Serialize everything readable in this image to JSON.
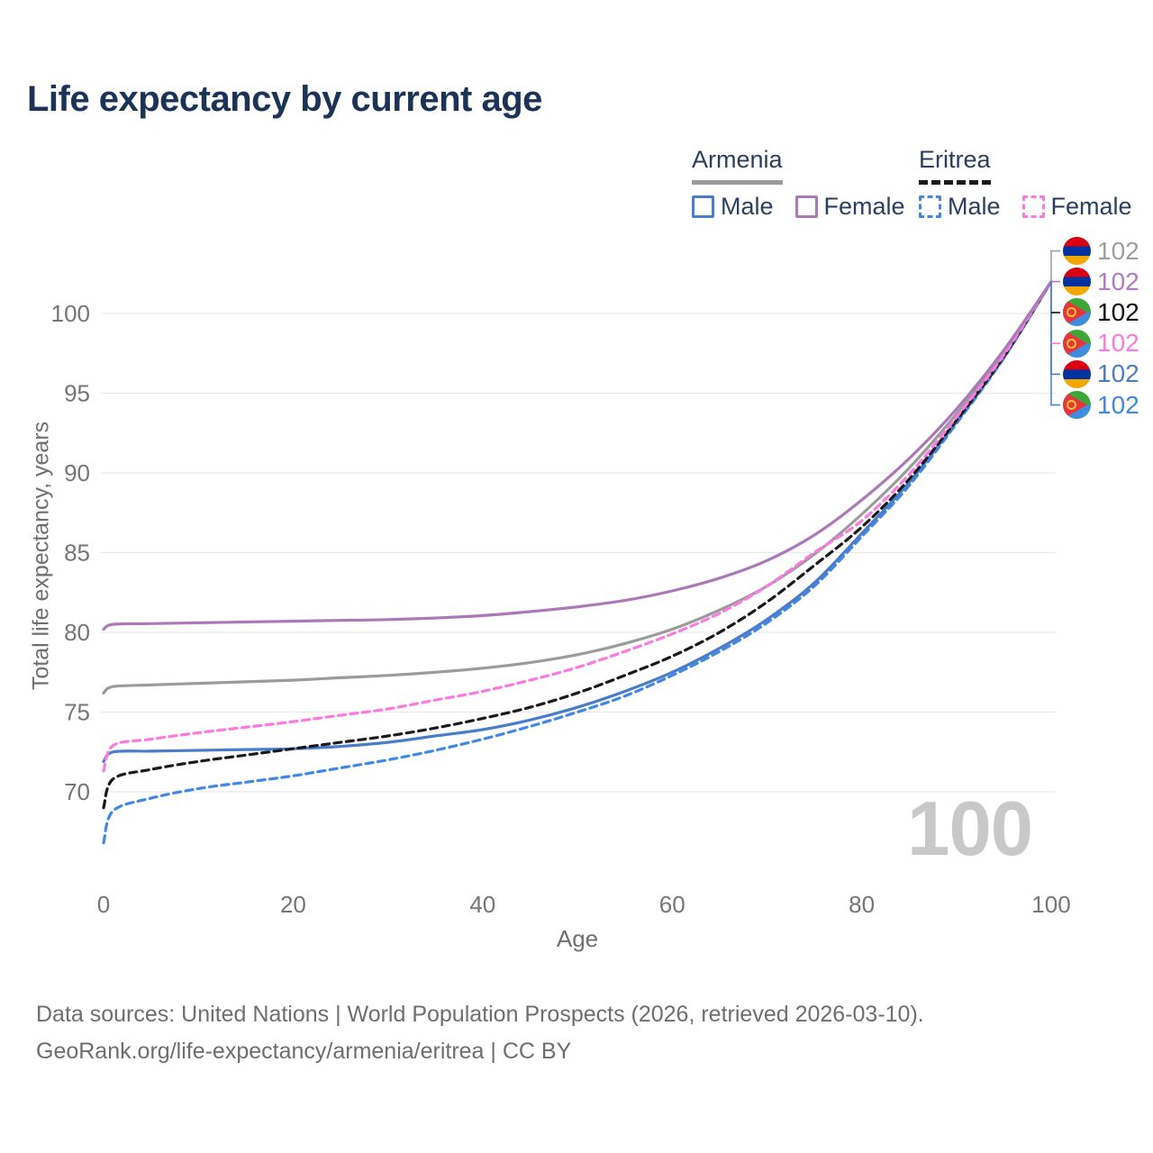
{
  "header": {
    "title": "Life expectancy by current age"
  },
  "legend": {
    "groups": [
      {
        "country": "Armenia",
        "line_style": "solid",
        "line_color": "#9b9b9b",
        "items": [
          {
            "label": "Male",
            "color": "#4a7dc9"
          },
          {
            "label": "Female",
            "color": "#ab79b8"
          }
        ]
      },
      {
        "country": "Eritrea",
        "line_style": "dashed",
        "line_color": "#1a1a1a",
        "items": [
          {
            "label": "Male",
            "color": "#4287e8"
          },
          {
            "label": "Female",
            "color": "#fb7ae1"
          }
        ]
      }
    ]
  },
  "chart_data": {
    "type": "line",
    "title": "Life expectancy by current age",
    "xlabel": "Age",
    "ylabel": "Total life expectancy, years",
    "x_ticks": [
      0,
      20,
      40,
      60,
      80,
      100
    ],
    "y_ticks": [
      70,
      75,
      80,
      85,
      90,
      95,
      100
    ],
    "xlim": [
      0,
      100
    ],
    "ylim": [
      66,
      103
    ],
    "grid": "horizontal",
    "legend_position": "top-right",
    "ages": [
      0,
      1,
      5,
      10,
      15,
      20,
      25,
      30,
      35,
      40,
      45,
      50,
      55,
      60,
      65,
      70,
      75,
      80,
      85,
      90,
      95,
      100
    ],
    "series": [
      {
        "key": "eritrea_male",
        "country": "Eritrea",
        "sex": "Male",
        "color": "#4287e8",
        "dash": "dashed",
        "values": [
          66.8,
          68.8,
          69.6,
          70.2,
          70.6,
          71.0,
          71.5,
          72.0,
          72.6,
          73.3,
          74.1,
          75.0,
          76.0,
          77.3,
          78.8,
          80.6,
          82.9,
          86.0,
          89.2,
          93.1,
          97.2,
          102
        ]
      },
      {
        "key": "armenia_male",
        "country": "Armenia",
        "sex": "Male",
        "color": "#4a7dc9",
        "dash": "solid",
        "values": [
          71.9,
          72.5,
          72.55,
          72.6,
          72.65,
          72.7,
          72.85,
          73.1,
          73.5,
          73.9,
          74.5,
          75.3,
          76.3,
          77.5,
          79.0,
          80.8,
          83.1,
          86.2,
          89.4,
          93.2,
          97.25,
          102
        ]
      },
      {
        "key": "eritrea_both",
        "country": "Eritrea",
        "sex": "Both sexes",
        "color": "#1a1a1a",
        "dash": "dashed",
        "values": [
          69.0,
          70.8,
          71.4,
          71.9,
          72.3,
          72.7,
          73.1,
          73.5,
          74.0,
          74.6,
          75.3,
          76.2,
          77.3,
          78.5,
          80.0,
          81.9,
          84.2,
          86.6,
          89.6,
          93.3,
          97.3,
          102
        ]
      },
      {
        "key": "armenia_both",
        "country": "Armenia",
        "sex": "Both sexes",
        "color": "#9b9b9b",
        "dash": "solid",
        "values": [
          76.2,
          76.6,
          76.7,
          76.8,
          76.9,
          77.0,
          77.15,
          77.3,
          77.5,
          77.75,
          78.1,
          78.6,
          79.3,
          80.2,
          81.4,
          82.9,
          84.9,
          87.4,
          90.3,
          93.7,
          97.5,
          102
        ]
      },
      {
        "key": "eritrea_female",
        "country": "Eritrea",
        "sex": "Female",
        "color": "#fb7ae1",
        "dash": "dashed",
        "values": [
          71.3,
          72.9,
          73.3,
          73.7,
          74.05,
          74.4,
          74.8,
          75.2,
          75.75,
          76.3,
          77.0,
          77.8,
          78.8,
          79.9,
          81.2,
          82.9,
          85.0,
          87.0,
          89.9,
          93.5,
          97.4,
          102
        ]
      },
      {
        "key": "armenia_female",
        "country": "Armenia",
        "sex": "Female",
        "color": "#ab79b8",
        "dash": "solid",
        "values": [
          80.2,
          80.5,
          80.55,
          80.6,
          80.65,
          80.7,
          80.75,
          80.8,
          80.9,
          81.05,
          81.3,
          81.6,
          82.0,
          82.6,
          83.4,
          84.5,
          86.1,
          88.3,
          90.9,
          94.0,
          97.7,
          102
        ]
      }
    ],
    "end_labels": [
      {
        "flag": "armenia",
        "value": "102",
        "color": "#9e9e9e",
        "series": "armenia_both"
      },
      {
        "flag": "armenia",
        "value": "102",
        "color": "#b279c2",
        "series": "armenia_female"
      },
      {
        "flag": "eritrea",
        "value": "102",
        "color": "#111111",
        "series": "eritrea_both"
      },
      {
        "flag": "eritrea",
        "value": "102",
        "color": "#fb7ae1",
        "series": "eritrea_female"
      },
      {
        "flag": "armenia",
        "value": "102",
        "color": "#4a7dc9",
        "series": "armenia_male"
      },
      {
        "flag": "eritrea",
        "value": "102",
        "color": "#4287e8",
        "series": "eritrea_male"
      }
    ]
  },
  "watermark": "100",
  "footer": {
    "line1": "Data sources: United Nations | World Population Prospects (2026, retrieved 2026-03-10).",
    "line2": "GeoRank.org/life-expectancy/armenia/eritrea | CC BY"
  }
}
